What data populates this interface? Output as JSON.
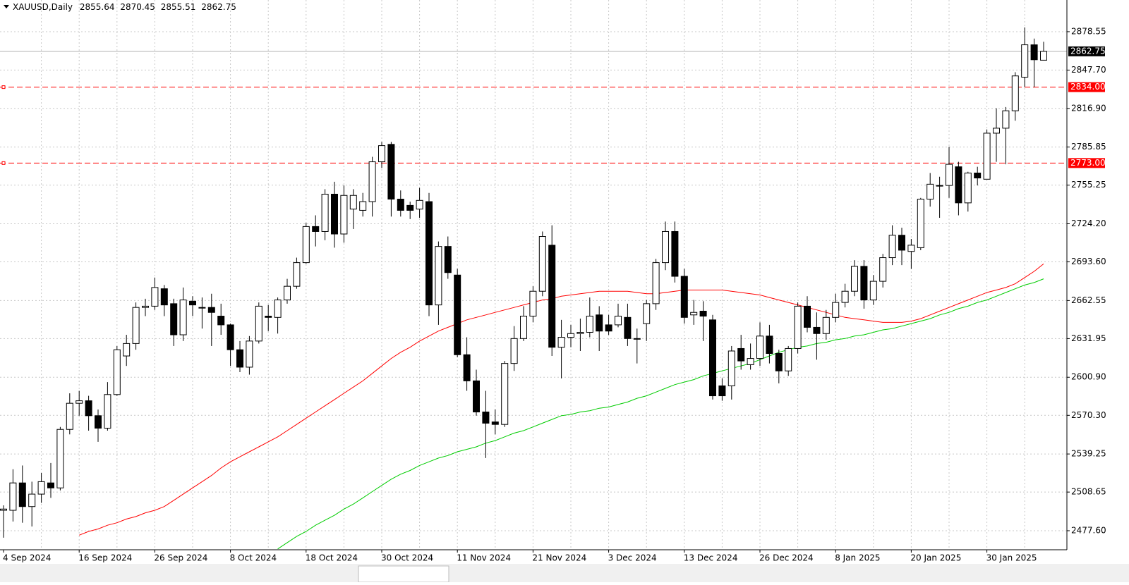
{
  "chart_data": {
    "type": "candlestick",
    "symbol": "XAUUSD,Daily",
    "categories": [
      "4 Sep 2024",
      null,
      null,
      null,
      null,
      null,
      null,
      null,
      "16 Sep 2024",
      null,
      null,
      null,
      null,
      null,
      null,
      null,
      "26 Sep 2024",
      null,
      null,
      null,
      null,
      null,
      null,
      null,
      "8 Oct 2024",
      null,
      null,
      null,
      null,
      null,
      null,
      null,
      "18 Oct 2024",
      null,
      null,
      null,
      null,
      null,
      null,
      null,
      "30 Oct 2024",
      null,
      null,
      null,
      null,
      null,
      null,
      null,
      "11 Nov 2024",
      null,
      null,
      null,
      null,
      null,
      null,
      null,
      "21 Nov 2024",
      null,
      null,
      null,
      null,
      null,
      null,
      null,
      "3 Dec 2024",
      null,
      null,
      null,
      null,
      null,
      null,
      null,
      "13 Dec 2024",
      null,
      null,
      null,
      null,
      null,
      null,
      null,
      "26 Dec 2024",
      null,
      null,
      null,
      null,
      null,
      null,
      null,
      "8 Jan 2025",
      null,
      null,
      null,
      null,
      null,
      null,
      null,
      "20 Jan 2025",
      null,
      null,
      null,
      null,
      null,
      null,
      null,
      "30 Jan 2025",
      null,
      null,
      null,
      null,
      null,
      null
    ],
    "open": [
      2494,
      2494,
      2516,
      2497,
      2507,
      2516,
      2512,
      2559,
      2580,
      2582,
      2570,
      2560,
      2587,
      2618,
      2628,
      2657,
      2658,
      2672,
      2660,
      2635,
      2662,
      2657,
      2657,
      2650,
      2643,
      2623,
      2609,
      2630,
      2650,
      2649,
      2663,
      2674,
      2693,
      2722,
      2718,
      2748,
      2716,
      2736,
      2735,
      2742,
      2774,
      2788,
      2744,
      2739,
      2736,
      2742,
      2659,
      2706,
      2683,
      2619,
      2598,
      2573,
      2565,
      2563,
      2612,
      2632,
      2650,
      2670,
      2707,
      2625,
      2633,
      2636,
      2637,
      2651,
      2643,
      2643,
      2649,
      2632,
      2644,
      2660,
      2693,
      2718,
      2682,
      2651,
      2654,
      2647,
      2594,
      2594,
      2624,
      2611,
      2616,
      2634,
      2620,
      2606,
      2624,
      2658,
      2641,
      2636,
      2649,
      2661,
      2670,
      2690,
      2663,
      2678,
      2697,
      2715,
      2702,
      2705,
      2744,
      2755,
      2755,
      2770,
      2741,
      2765,
      2760,
      2797,
      2801,
      2815,
      2842,
      2868,
      2855.64
    ],
    "high": [
      2498,
      2527,
      2530,
      2517,
      2524,
      2532,
      2561,
      2588,
      2590,
      2586,
      2575,
      2597,
      2626,
      2635,
      2661,
      2664,
      2681,
      2675,
      2664,
      2673,
      2666,
      2665,
      2668,
      2660,
      2644,
      2630,
      2634,
      2661,
      2659,
      2665,
      2680,
      2697,
      2725,
      2731,
      2752,
      2758,
      2755,
      2752,
      2749,
      2778,
      2790,
      2790,
      2751,
      2742,
      2753,
      2749,
      2710,
      2714,
      2688,
      2633,
      2607,
      2590,
      2575,
      2614,
      2642,
      2658,
      2674,
      2718,
      2723,
      2647,
      2643,
      2648,
      2665,
      2658,
      2651,
      2660,
      2660,
      2640,
      2663,
      2696,
      2726,
      2726,
      2688,
      2663,
      2662,
      2651,
      2600,
      2626,
      2635,
      2628,
      2645,
      2643,
      2623,
      2626,
      2661,
      2666,
      2653,
      2655,
      2668,
      2676,
      2695,
      2695,
      2683,
      2700,
      2723,
      2721,
      2712,
      2745,
      2765,
      2762,
      2786,
      2774,
      2766,
      2770,
      2800,
      2817,
      2818,
      2846,
      2882,
      2873,
      2870.45
    ],
    "low": [
      2472,
      2485,
      2484,
      2481,
      2500,
      2504,
      2510,
      2555,
      2570,
      2558,
      2549,
      2558,
      2586,
      2610,
      2623,
      2650,
      2655,
      2650,
      2626,
      2630,
      2650,
      2640,
      2626,
      2635,
      2610,
      2605,
      2603,
      2628,
      2638,
      2636,
      2660,
      2672,
      2692,
      2706,
      2711,
      2705,
      2709,
      2720,
      2730,
      2730,
      2769,
      2730,
      2730,
      2728,
      2729,
      2650,
      2643,
      2680,
      2617,
      2590,
      2570,
      2536,
      2555,
      2561,
      2606,
      2630,
      2645,
      2666,
      2618,
      2600,
      2625,
      2622,
      2633,
      2622,
      2635,
      2641,
      2626,
      2612,
      2630,
      2655,
      2687,
      2677,
      2644,
      2643,
      2630,
      2583,
      2582,
      2583,
      2607,
      2607,
      2610,
      2612,
      2596,
      2602,
      2620,
      2637,
      2615,
      2631,
      2645,
      2657,
      2666,
      2656,
      2659,
      2673,
      2691,
      2691,
      2688,
      2703,
      2738,
      2729,
      2745,
      2731,
      2734,
      2755,
      2760,
      2774,
      2772,
      2807,
      2834,
      2834,
      2855.51
    ],
    "close": [
      2495,
      2516,
      2497,
      2507,
      2517,
      2512,
      2559,
      2580,
      2582,
      2570,
      2560,
      2587,
      2623,
      2628,
      2657,
      2658,
      2673,
      2659,
      2635,
      2663,
      2659,
      2657,
      2653,
      2643,
      2623,
      2609,
      2630,
      2658,
      2649,
      2663,
      2674,
      2693,
      2722,
      2718,
      2748,
      2716,
      2747,
      2747,
      2742,
      2774,
      2787,
      2744,
      2735,
      2735,
      2743,
      2659,
      2706,
      2685,
      2619,
      2598,
      2573,
      2564,
      2563,
      2612,
      2632,
      2650,
      2670,
      2714,
      2625,
      2633,
      2636,
      2637,
      2650,
      2638,
      2638,
      2650,
      2632,
      2632,
      2660,
      2693,
      2718,
      2682,
      2649,
      2653,
      2650,
      2586,
      2586,
      2622,
      2614,
      2616,
      2634,
      2620,
      2606,
      2624,
      2658,
      2641,
      2636,
      2649,
      2661,
      2670,
      2690,
      2663,
      2678,
      2697,
      2715,
      2703,
      2707,
      2744,
      2756,
      2755,
      2772,
      2741,
      2765,
      2761,
      2797,
      2801,
      2815,
      2843,
      2868,
      2856,
      2862.75
    ],
    "up_color": "#ffffff",
    "down_color": "#000000",
    "moving_averages": [
      {
        "color": "#ff0000",
        "values": [
          null,
          null,
          null,
          null,
          null,
          null,
          null,
          null,
          2474,
          2477,
          2479,
          2482,
          2484,
          2487,
          2489,
          2492,
          2494,
          2497,
          2502,
          2507,
          2512,
          2517,
          2522,
          2528,
          2533,
          2537,
          2541,
          2545,
          2549,
          2553,
          2558,
          2563,
          2568,
          2573,
          2578,
          2583,
          2588,
          2593,
          2598,
          2604,
          2610,
          2616,
          2621,
          2625,
          2630,
          2634,
          2638,
          2641,
          2644,
          2647,
          2649,
          2651,
          2653,
          2655,
          2657,
          2659,
          2661,
          2663,
          2664,
          2666,
          2667,
          2668,
          2669,
          2670,
          2670,
          2670,
          2670,
          2669,
          2668,
          2668,
          2669,
          2670,
          2671,
          2671,
          2671,
          2671,
          2671,
          2670,
          2669,
          2668,
          2667,
          2665,
          2663,
          2661,
          2659,
          2657,
          2655,
          2653,
          2651,
          2649,
          2648,
          2647,
          2646,
          2645,
          2645,
          2645,
          2646,
          2648,
          2651,
          2654,
          2657,
          2660,
          2663,
          2666,
          2669,
          2671,
          2673,
          2676,
          2681,
          2686,
          2692
        ]
      },
      {
        "color": "#00cc00",
        "values": [
          null,
          null,
          null,
          null,
          null,
          null,
          null,
          null,
          null,
          null,
          null,
          null,
          null,
          null,
          null,
          null,
          null,
          null,
          null,
          null,
          null,
          null,
          null,
          null,
          null,
          null,
          null,
          null,
          null,
          2463,
          2468,
          2473,
          2477,
          2482,
          2486,
          2490,
          2495,
          2499,
          2504,
          2509,
          2514,
          2519,
          2523,
          2526,
          2530,
          2533,
          2536,
          2538,
          2541,
          2543,
          2545,
          2548,
          2550,
          2553,
          2556,
          2558,
          2561,
          2564,
          2567,
          2570,
          2571,
          2573,
          2574,
          2576,
          2577,
          2579,
          2581,
          2584,
          2586,
          2589,
          2592,
          2595,
          2597,
          2599,
          2602,
          2604,
          2606,
          2608,
          2610,
          2612,
          2615,
          2618,
          2621,
          2623,
          2625,
          2626,
          2628,
          2629,
          2631,
          2632,
          2634,
          2635,
          2637,
          2639,
          2640,
          2642,
          2644,
          2646,
          2648,
          2651,
          2653,
          2656,
          2658,
          2661,
          2663,
          2666,
          2669,
          2672,
          2675,
          2677,
          2680
        ]
      }
    ],
    "levels": [
      {
        "value": 2834,
        "label": "2834.00",
        "color": "#ff0000"
      },
      {
        "value": 2773,
        "label": "2773.00",
        "color": "#ff0000"
      }
    ],
    "ylim": [
      2462.3,
      2904.0
    ],
    "yticks": [
      2878.55,
      {
        "value": 2847.7,
        "label": "2847.70"
      },
      {
        "value": 2816.9,
        "label": "2816.90"
      },
      2785.85,
      2755.25,
      {
        "value": 2724.2,
        "label": "2724.20"
      },
      {
        "value": 2693.6,
        "label": "2693.60"
      },
      2662.55,
      2631.95,
      {
        "value": 2600.9,
        "label": "2600.90"
      },
      {
        "value": 2570.3,
        "label": "2570.30"
      },
      2539.25,
      2508.65,
      {
        "value": 2477.6,
        "label": "2477.60"
      }
    ],
    "grid": true
  }
}
